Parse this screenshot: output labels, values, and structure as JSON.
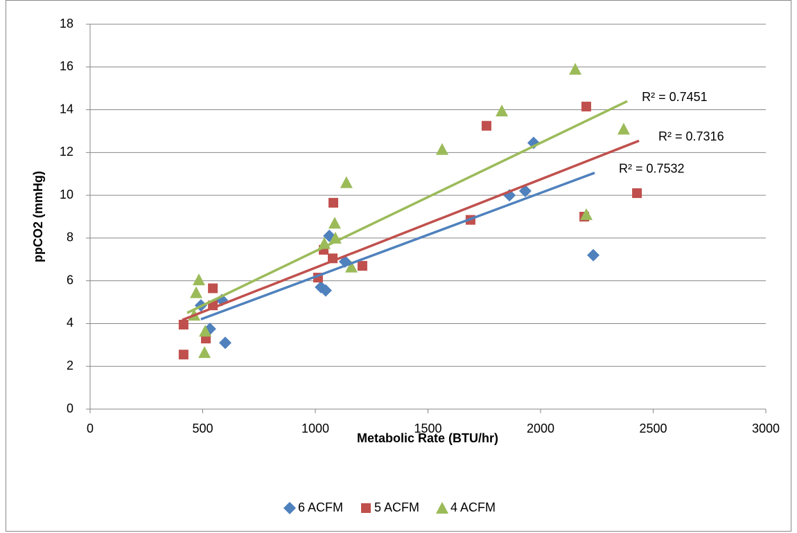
{
  "chart_data": {
    "type": "scatter",
    "xlabel": "Metabolic Rate (BTU/hr)",
    "ylabel": "ppCO2 (mmHg)",
    "xlim": [
      0,
      3000
    ],
    "xticks": [
      0,
      500,
      1000,
      1500,
      2000,
      2500,
      3000
    ],
    "ylim": [
      0,
      18
    ],
    "yticks": [
      0,
      2,
      4,
      6,
      8,
      10,
      12,
      14,
      16,
      18
    ],
    "grid": true,
    "legend": "bottom",
    "series": [
      {
        "name": "6 ACFM",
        "color": "#4f81bd",
        "marker": "diamond",
        "x": [
          492,
          585,
          532,
          600,
          1025,
          1046,
          1062,
          1132,
          1862,
          1932,
          1969,
          2234
        ],
        "values": [
          4.85,
          5.1,
          3.75,
          3.1,
          5.7,
          5.55,
          8.1,
          6.9,
          10.0,
          10.2,
          12.45,
          7.2
        ],
        "trendline": {
          "x": [
            492,
            2240
          ],
          "y": [
            4.2,
            11.05
          ],
          "label": "R² = 0.7532"
        }
      },
      {
        "name": "5 ACFM",
        "color": "#c0504d",
        "marker": "square",
        "x": [
          415,
          415,
          514,
          545,
          545,
          1012,
          1037,
          1077,
          1080,
          1209,
          1689,
          1760,
          2203,
          2194,
          2428
        ],
        "values": [
          3.95,
          2.55,
          3.3,
          4.85,
          5.65,
          6.15,
          7.45,
          7.05,
          9.65,
          6.7,
          8.85,
          13.25,
          14.15,
          9.0,
          10.1
        ],
        "trendline": {
          "x": [
            409,
            2437
          ],
          "y": [
            4.17,
            12.55
          ],
          "label": "R² = 0.7316"
        }
      },
      {
        "name": "4 ACFM",
        "color": "#9bbb59",
        "marker": "triangle",
        "x": [
          462,
          483,
          471,
          511,
          508,
          1040,
          1086,
          1089,
          1138,
          1160,
          1563,
          1828,
          2154,
          2203,
          2369
        ],
        "values": [
          4.4,
          6.05,
          5.45,
          3.65,
          2.65,
          7.75,
          8.7,
          8.0,
          10.6,
          6.65,
          12.15,
          13.95,
          15.9,
          9.1,
          13.1
        ],
        "trendline": {
          "x": [
            431,
            2385
          ],
          "y": [
            4.5,
            14.4
          ],
          "label": "R² = 0.7451"
        }
      }
    ]
  }
}
